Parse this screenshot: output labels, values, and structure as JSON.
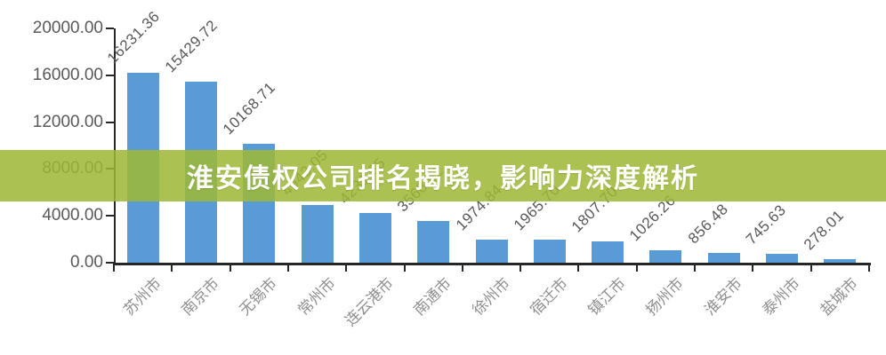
{
  "banner": {
    "title": "淮安债权公司排名揭晓，影响力深度解析",
    "background": "rgba(157,184,54,0.86)",
    "text_color": "#FFFFFF"
  },
  "chart_data": {
    "type": "bar",
    "categories": [
      "苏州市",
      "南京市",
      "无锡市",
      "常州市",
      "连云港市",
      "南通市",
      "徐州市",
      "宿迁市",
      "镇江市",
      "扬州市",
      "淮安市",
      "泰州市",
      "盐城市"
    ],
    "values": [
      16231.36,
      15429.72,
      10168.71,
      4943.05,
      4231.35,
      3568.62,
      1974.84,
      1965.7,
      1807.7,
      1026.26,
      856.48,
      745.63,
      278.01
    ],
    "value_labels": [
      "16231.36",
      "15429.72",
      "10168.71",
      "4943.05",
      "4231.35",
      "3568.62",
      "1974.84",
      "1965.70",
      "1807.70",
      "1026.26",
      "856.48",
      "745.63",
      "278.01"
    ],
    "title": "",
    "xlabel": "",
    "ylabel": "",
    "ylim": [
      0,
      20000
    ],
    "y_ticks": [
      "20000.00",
      "16000.00",
      "12000.00",
      "8000.00",
      "4000.00",
      "0.00"
    ],
    "grid": false,
    "legend": null,
    "bar_color": "#5B9BD5",
    "axis_color": "#262626",
    "label_color": "#595959",
    "xlabel_color": "#8F8F8F",
    "label_rotation": -45
  }
}
